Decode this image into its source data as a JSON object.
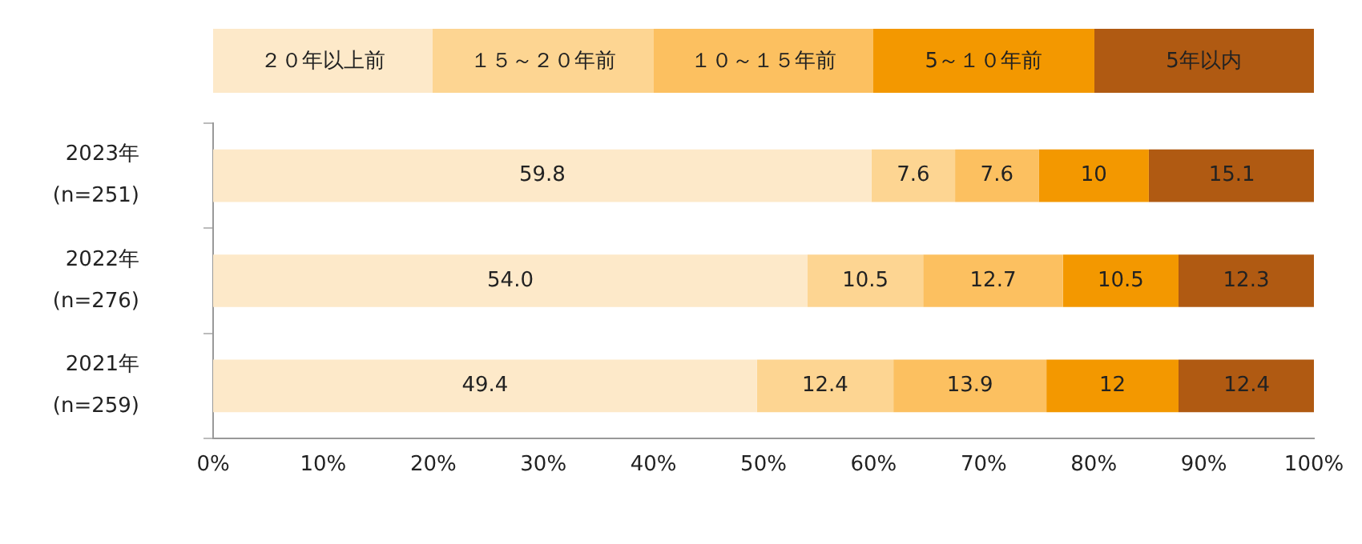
{
  "chart_data": {
    "type": "bar",
    "orientation": "horizontal",
    "stacked": true,
    "legend": "top",
    "categories": [
      "2023年\n(n=251)",
      "2022年\n(n=276)",
      "2021年\n(n=259)"
    ],
    "series": [
      {
        "name": "２０年以上前",
        "color": "#fde9c9",
        "values": [
          59.8,
          54,
          49.4
        ],
        "value_labels": [
          "59.8",
          "54.0",
          "49.4"
        ]
      },
      {
        "name": "１５～２０年前",
        "color": "#fdd592",
        "values": [
          7.6,
          10.5,
          12.4
        ],
        "value_labels": [
          "7.6",
          "10.5",
          "12.4"
        ]
      },
      {
        "name": "１０～１５年前",
        "color": "#fcc060",
        "values": [
          7.6,
          12.7,
          13.9
        ],
        "value_labels": [
          "7.6",
          "12.7",
          "13.9"
        ]
      },
      {
        "name": "5～１０年前",
        "color": "#f39800",
        "values": [
          10,
          10.5,
          12
        ],
        "value_labels": [
          "10",
          "10.5",
          "12"
        ]
      },
      {
        "name": "5年以内",
        "color": "#b05a12",
        "values": [
          15.1,
          12.3,
          12.4
        ],
        "value_labels": [
          "15.1",
          "12.3",
          "12.4"
        ]
      }
    ],
    "xlim": [
      0,
      100
    ],
    "xticks": [
      {
        "value": 0,
        "label": "0%"
      },
      {
        "value": 10,
        "label": "10%"
      },
      {
        "value": 20,
        "label": "20%"
      },
      {
        "value": 30,
        "label": "30%"
      },
      {
        "value": 40,
        "label": "40%"
      },
      {
        "value": 50,
        "label": "50%"
      },
      {
        "value": 60,
        "label": "60%"
      },
      {
        "value": 70,
        "label": "70%"
      },
      {
        "value": 80,
        "label": "80%"
      },
      {
        "value": 90,
        "label": "90%"
      },
      {
        "value": 100,
        "label": "100%"
      }
    ]
  }
}
